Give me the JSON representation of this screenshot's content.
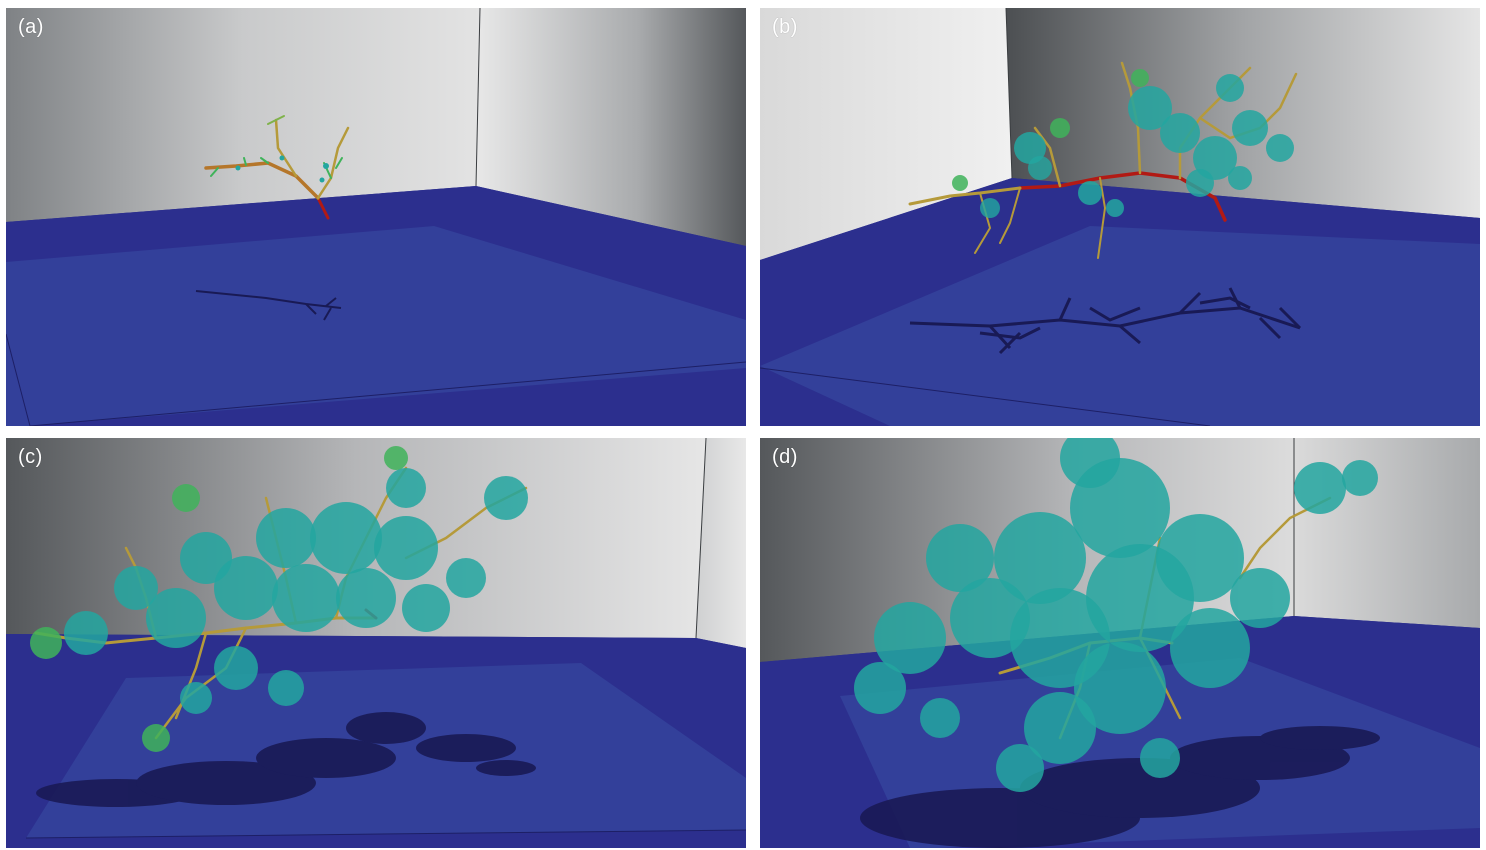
{
  "panels": [
    {
      "id": "a",
      "label": "(a)",
      "growth_stage": 1
    },
    {
      "id": "b",
      "label": "(b)",
      "growth_stage": 2
    },
    {
      "id": "c",
      "label": "(c)",
      "growth_stage": 3
    },
    {
      "id": "d",
      "label": "(d)",
      "growth_stage": 4
    }
  ],
  "colors": {
    "floor": "#2c2f8e",
    "floor_plate": "#33409a",
    "wall_light": "#e6e6e6",
    "wall_dark": "#4f5256",
    "trunk": "#b21a14",
    "branch": "#b59a3a",
    "twig": "#3fb35a",
    "leaf": "#23a6a0",
    "shadow": "#191a55"
  }
}
